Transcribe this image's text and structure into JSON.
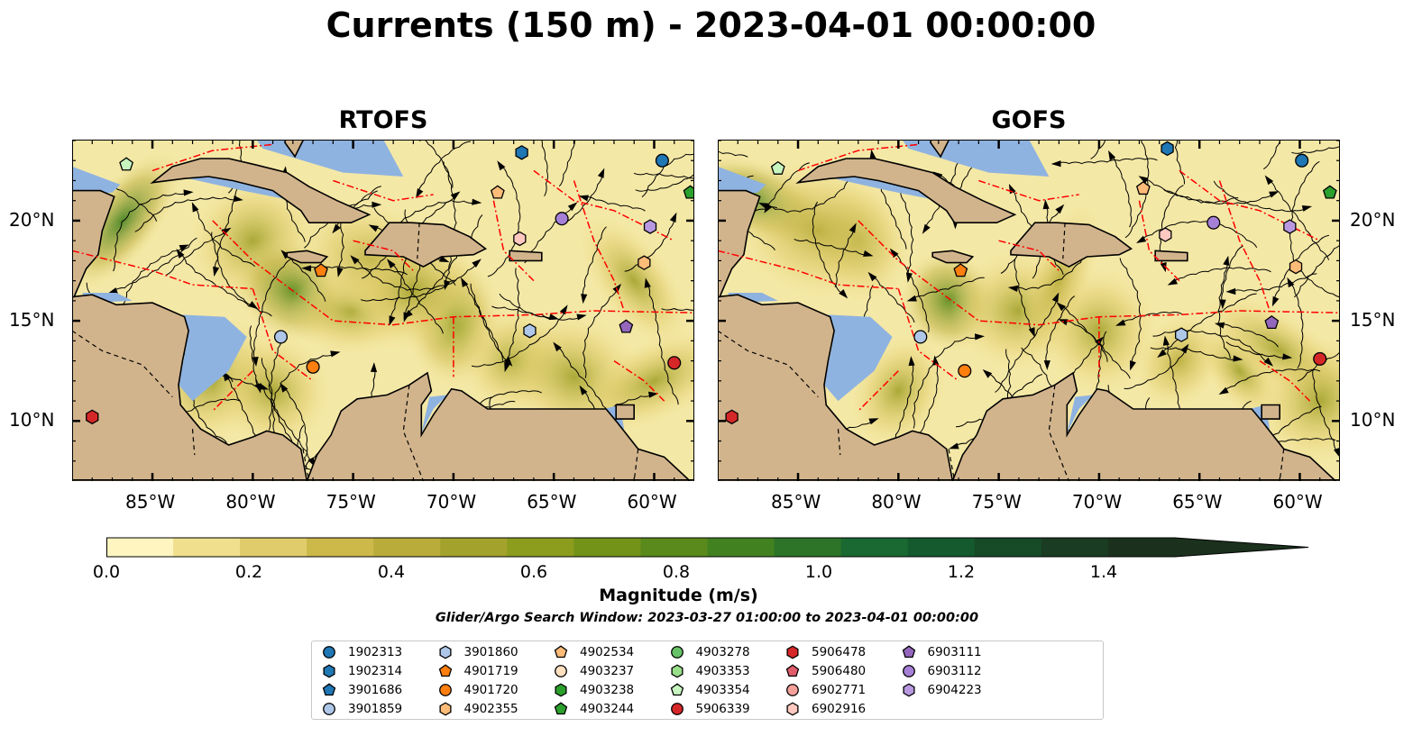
{
  "title": "Currents (150 m) - 2023-04-01 00:00:00",
  "panels": [
    {
      "title": "RTOFS"
    },
    {
      "title": "GOFS"
    }
  ],
  "axes": {
    "x_ticks": [
      "85°W",
      "80°W",
      "75°W",
      "70°W",
      "65°W",
      "60°W"
    ],
    "y_ticks": [
      "20°N",
      "15°N",
      "10°N"
    ],
    "lon_range": [
      -89,
      -58
    ],
    "lat_range": [
      7,
      24
    ]
  },
  "colors": {
    "land": "#d2b48c",
    "shelf_water": "#8fb3e0",
    "eez_lines": "#ff0000"
  },
  "colorbar": {
    "title": "Magnitude (m/s)",
    "tick_labels": [
      "0.0",
      "0.2",
      "0.4",
      "0.6",
      "0.8",
      "1.0",
      "1.2",
      "1.4"
    ],
    "range": [
      0.0,
      1.5
    ],
    "extend": "max",
    "colors": [
      "#fff5c0",
      "#f0e08e",
      "#e0cc6a",
      "#cdb84a",
      "#b9ac3a",
      "#a3a22c",
      "#8c9d1e",
      "#729318",
      "#5a8a1c",
      "#428120",
      "#2d7428",
      "#1a6832",
      "#145a2e",
      "#174a27",
      "#1a3c22",
      "#1b311d"
    ]
  },
  "search_window": "Glider/Argo Search Window: 2023-03-27 01:00:00 to 2023-04-01 00:00:00",
  "legend": [
    {
      "id": "1902313",
      "shape": "circle",
      "color": "#1f77b4"
    },
    {
      "id": "1902314",
      "shape": "hexagon",
      "color": "#1f77b4"
    },
    {
      "id": "3901686",
      "shape": "pentagon",
      "color": "#1f77b4"
    },
    {
      "id": "3901859",
      "shape": "circle",
      "color": "#aec7e8"
    },
    {
      "id": "3901860",
      "shape": "hexagon",
      "color": "#aec7e8"
    },
    {
      "id": "4901719",
      "shape": "pentagon",
      "color": "#ff7f0e"
    },
    {
      "id": "4901720",
      "shape": "circle",
      "color": "#ff7f0e"
    },
    {
      "id": "4902355",
      "shape": "hexagon",
      "color": "#ffbb78"
    },
    {
      "id": "4902534",
      "shape": "pentagon",
      "color": "#ffbb78"
    },
    {
      "id": "4903237",
      "shape": "circle",
      "color": "#ffe0c0"
    },
    {
      "id": "4903238",
      "shape": "hexagon",
      "color": "#2ca02c"
    },
    {
      "id": "4903244",
      "shape": "pentagon",
      "color": "#2ca02c"
    },
    {
      "id": "4903278",
      "shape": "circle",
      "color": "#66c266"
    },
    {
      "id": "4903353",
      "shape": "hexagon",
      "color": "#98df8a"
    },
    {
      "id": "4903354",
      "shape": "pentagon",
      "color": "#c7f5c0"
    },
    {
      "id": "5906339",
      "shape": "circle",
      "color": "#d62728"
    },
    {
      "id": "5906478",
      "shape": "hexagon",
      "color": "#d62728"
    },
    {
      "id": "5906480",
      "shape": "pentagon",
      "color": "#e05c6a"
    },
    {
      "id": "6902771",
      "shape": "circle",
      "color": "#f4a09a"
    },
    {
      "id": "6902916",
      "shape": "hexagon",
      "color": "#ffc8c0"
    },
    {
      "id": "6903111",
      "shape": "pentagon",
      "color": "#9467bd"
    },
    {
      "id": "6903112",
      "shape": "circle",
      "color": "#a67fd6"
    },
    {
      "id": "6904223",
      "shape": "hexagon",
      "color": "#b898e0"
    }
  ],
  "floats": [
    {
      "id": "1902313",
      "lon": -59.6,
      "lat": 23.0
    },
    {
      "id": "1902314",
      "lon": -66.6,
      "lat": 23.4
    },
    {
      "id": "4903354",
      "lon": -86.3,
      "lat": 22.8
    },
    {
      "id": "4903244",
      "lon": -58.2,
      "lat": 21.4
    },
    {
      "id": "4902534",
      "lon": -67.8,
      "lat": 21.4
    },
    {
      "id": "6903112",
      "lon": -64.6,
      "lat": 20.1
    },
    {
      "id": "6904223",
      "lon": -60.2,
      "lat": 19.7
    },
    {
      "id": "6902916",
      "lon": -66.7,
      "lat": 19.1
    },
    {
      "id": "4902355",
      "lon": -60.5,
      "lat": 17.9
    },
    {
      "id": "4901719",
      "lon": -76.6,
      "lat": 17.5
    },
    {
      "id": "6903111",
      "lon": -61.4,
      "lat": 14.7
    },
    {
      "id": "3901860",
      "lon": -66.2,
      "lat": 14.5
    },
    {
      "id": "3901859",
      "lon": -78.6,
      "lat": 14.2
    },
    {
      "id": "5906339",
      "lon": -59.0,
      "lat": 12.9
    },
    {
      "id": "4901720",
      "lon": -77.0,
      "lat": 12.7
    },
    {
      "id": "5906478",
      "lon": -88.0,
      "lat": 10.2
    }
  ]
}
